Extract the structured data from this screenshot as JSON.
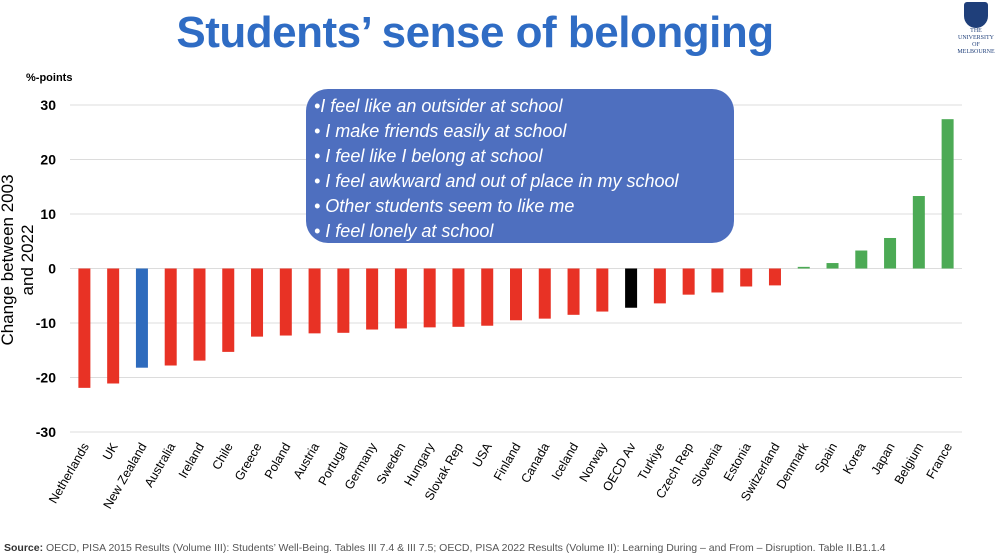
{
  "title": "Students’ sense of belonging",
  "logo_text": "THE UNIVERSITY OF MELBOURNE",
  "callout": [
    "•I feel like an outsider at school",
    "• I make friends easily at school",
    "• I feel like I belong at school",
    "• I feel awkward and out of place in my school",
    "• Other students seem to like me",
    "• I feel lonely at school"
  ],
  "source_label": "Source:",
  "source_text": " OECD, PISA 2015 Results (Volume III): Students’ Well-Being. Tables III 7.4 & III 7.5; OECD, PISA 2022 Results (Volume II): Learning During – and From – Disruption. Table II.B1.1.4",
  "chart_data": {
    "type": "bar",
    "unit_label": "%-points",
    "ylabel": "Change between 2003 and 2022",
    "ylim": [
      -30,
      30
    ],
    "yticks": [
      -30,
      -20,
      -10,
      0,
      10,
      20,
      30
    ],
    "grid": true,
    "categories": [
      "Netherlands",
      "UK",
      "New Zealand",
      "Australia",
      "Ireland",
      "Chile",
      "Greece",
      "Poland",
      "Austria",
      "Portugal",
      "Germany",
      "Sweden",
      "Hungary",
      "Slovak Rep",
      "USA",
      "Finland",
      "Canada",
      "Iceland",
      "Norway",
      "OECD Av",
      "Turkiye",
      "Czech Rep",
      "Slovenia",
      "Estonia",
      "Switzerland",
      "Denmark",
      "Spain",
      "Korea",
      "Japan",
      "Belgium",
      "France"
    ],
    "values": [
      -21.9,
      -21.1,
      -18.2,
      -17.8,
      -16.9,
      -15.3,
      -12.5,
      -12.3,
      -11.9,
      -11.8,
      -11.2,
      -11.0,
      -10.8,
      -10.7,
      -10.5,
      -9.5,
      -9.2,
      -8.5,
      -7.9,
      -7.2,
      -6.4,
      -4.8,
      -4.4,
      -3.3,
      -3.1,
      0.3,
      1.0,
      3.3,
      5.6,
      13.3,
      27.4
    ],
    "colors": {
      "negative": "#e83225",
      "positive": "#4caa55",
      "highlight": "#2e6bbd",
      "average": "#000000"
    },
    "highlight": "New Zealand",
    "average": "OECD Av"
  }
}
